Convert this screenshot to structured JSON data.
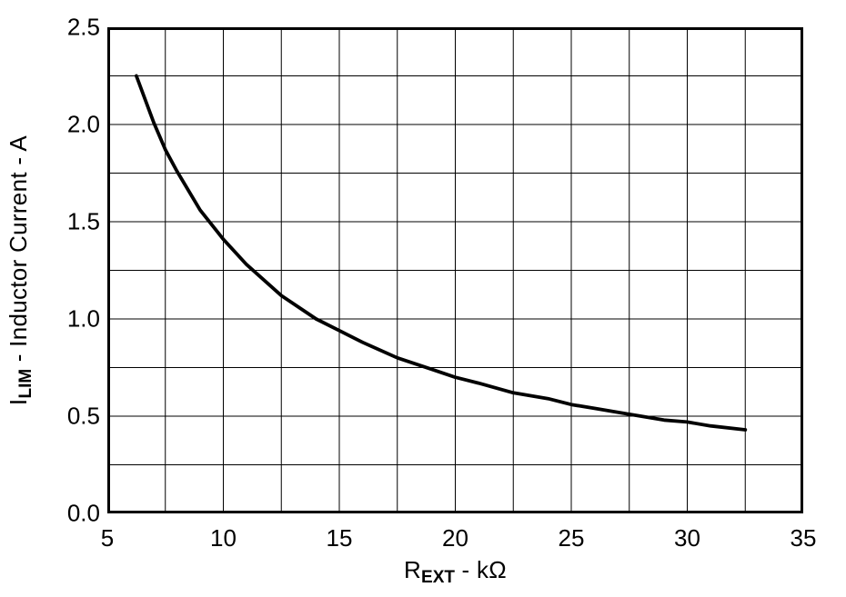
{
  "colors": {
    "background": "#ffffff",
    "frame": "#000000",
    "grid": "#000000",
    "curve": "#000000",
    "text": "#000000"
  },
  "chart_data": {
    "type": "line",
    "title": "",
    "xlabel": {
      "symbol": "R",
      "subscript": "EXT",
      "unit_suffix": " - kΩ"
    },
    "ylabel": {
      "symbol": "I",
      "subscript": "LIM",
      "unit_suffix": " - Inductor Current - A"
    },
    "xlim": [
      5,
      35
    ],
    "ylim": [
      0,
      2.5
    ],
    "x_grid_step": 2.5,
    "y_grid_step": 0.25,
    "grid": true,
    "legend_position": "none",
    "x_major_ticks": [
      5,
      10,
      15,
      20,
      25,
      30,
      35
    ],
    "x_tick_labels": [
      "5",
      "10",
      "15",
      "20",
      "25",
      "30",
      "35"
    ],
    "y_major_ticks": [
      0,
      0.5,
      1.0,
      1.5,
      2.0,
      2.5
    ],
    "y_tick_labels": [
      "0.0",
      "0.5",
      "1.0",
      "1.5",
      "2.0",
      "2.5"
    ],
    "series": [
      {
        "name": "inductor-current-limit-vs-rext",
        "color": "#000000",
        "x": [
          6.25,
          7.0,
          7.5,
          8.0,
          9.0,
          10.0,
          11.0,
          12.5,
          14.0,
          15.0,
          16.0,
          17.5,
          19.0,
          20.0,
          21.0,
          22.5,
          24.0,
          25.0,
          26.0,
          27.5,
          29.0,
          30.0,
          31.0,
          32.5
        ],
        "y": [
          2.25,
          2.01,
          1.87,
          1.76,
          1.56,
          1.41,
          1.28,
          1.12,
          1.0,
          0.94,
          0.88,
          0.8,
          0.74,
          0.7,
          0.67,
          0.62,
          0.59,
          0.56,
          0.54,
          0.51,
          0.48,
          0.47,
          0.45,
          0.43
        ]
      }
    ]
  }
}
